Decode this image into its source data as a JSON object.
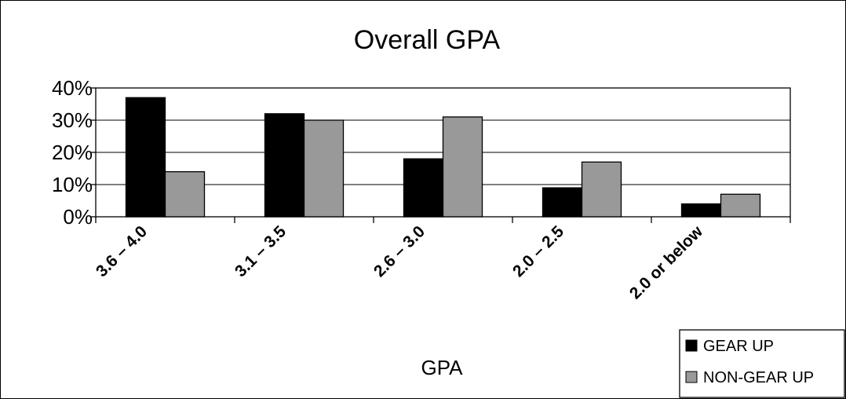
{
  "chart_data": {
    "type": "bar",
    "title": "Overall GPA",
    "xlabel": "GPA",
    "ylabel": "",
    "categories": [
      "3.6 – 4.0",
      "3.1 – 3.5",
      "2.6 – 3.0",
      "2.0 – 2.5",
      "2.0 or below"
    ],
    "series": [
      {
        "name": "GEAR UP",
        "color": "#000000",
        "values": [
          37,
          32,
          18,
          9,
          4
        ]
      },
      {
        "name": "NON-GEAR UP",
        "color": "#999999",
        "values": [
          14,
          30,
          31,
          17,
          7
        ]
      }
    ],
    "ylim": [
      0,
      40
    ],
    "yticks": [
      0,
      10,
      20,
      30,
      40
    ],
    "ytick_labels": [
      "0%",
      "10%",
      "20%",
      "30%",
      "40%"
    ],
    "grid": true,
    "legend_position": "bottom-right"
  }
}
